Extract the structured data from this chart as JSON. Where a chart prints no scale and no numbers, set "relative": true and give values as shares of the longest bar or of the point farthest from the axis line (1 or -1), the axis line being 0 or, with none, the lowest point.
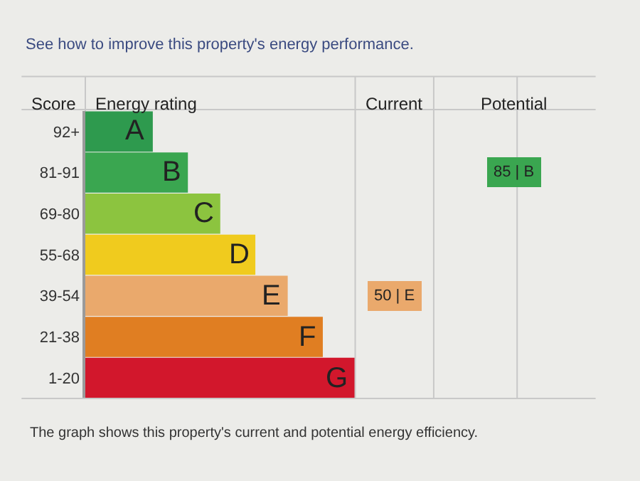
{
  "chart_data": {
    "type": "bar",
    "orientation": "horizontal",
    "relative": true,
    "title": "See how to improve this property's energy performance.",
    "ylabel": "Score",
    "xlabel": "Energy rating",
    "categories": [
      "92+",
      "81-91",
      "69-80",
      "55-68",
      "39-54",
      "21-38",
      "1-20"
    ],
    "values": [
      0.25,
      0.38,
      0.5,
      0.63,
      0.75,
      0.88,
      1
    ],
    "colors": [
      "#2e9a4e",
      "#3aa650",
      "#8cc43f",
      "#f0cb1e",
      "#eaa96c",
      "#e07e22",
      "#d2172c"
    ],
    "annotations": [
      "A",
      "B",
      "C",
      "D",
      "E",
      "F",
      "G",
      "Current",
      "Potential",
      "50 | E",
      "85 | B",
      "The graph shows this property's current and potential energy efficiency."
    ],
    "grid": false,
    "legend": false
  }
}
